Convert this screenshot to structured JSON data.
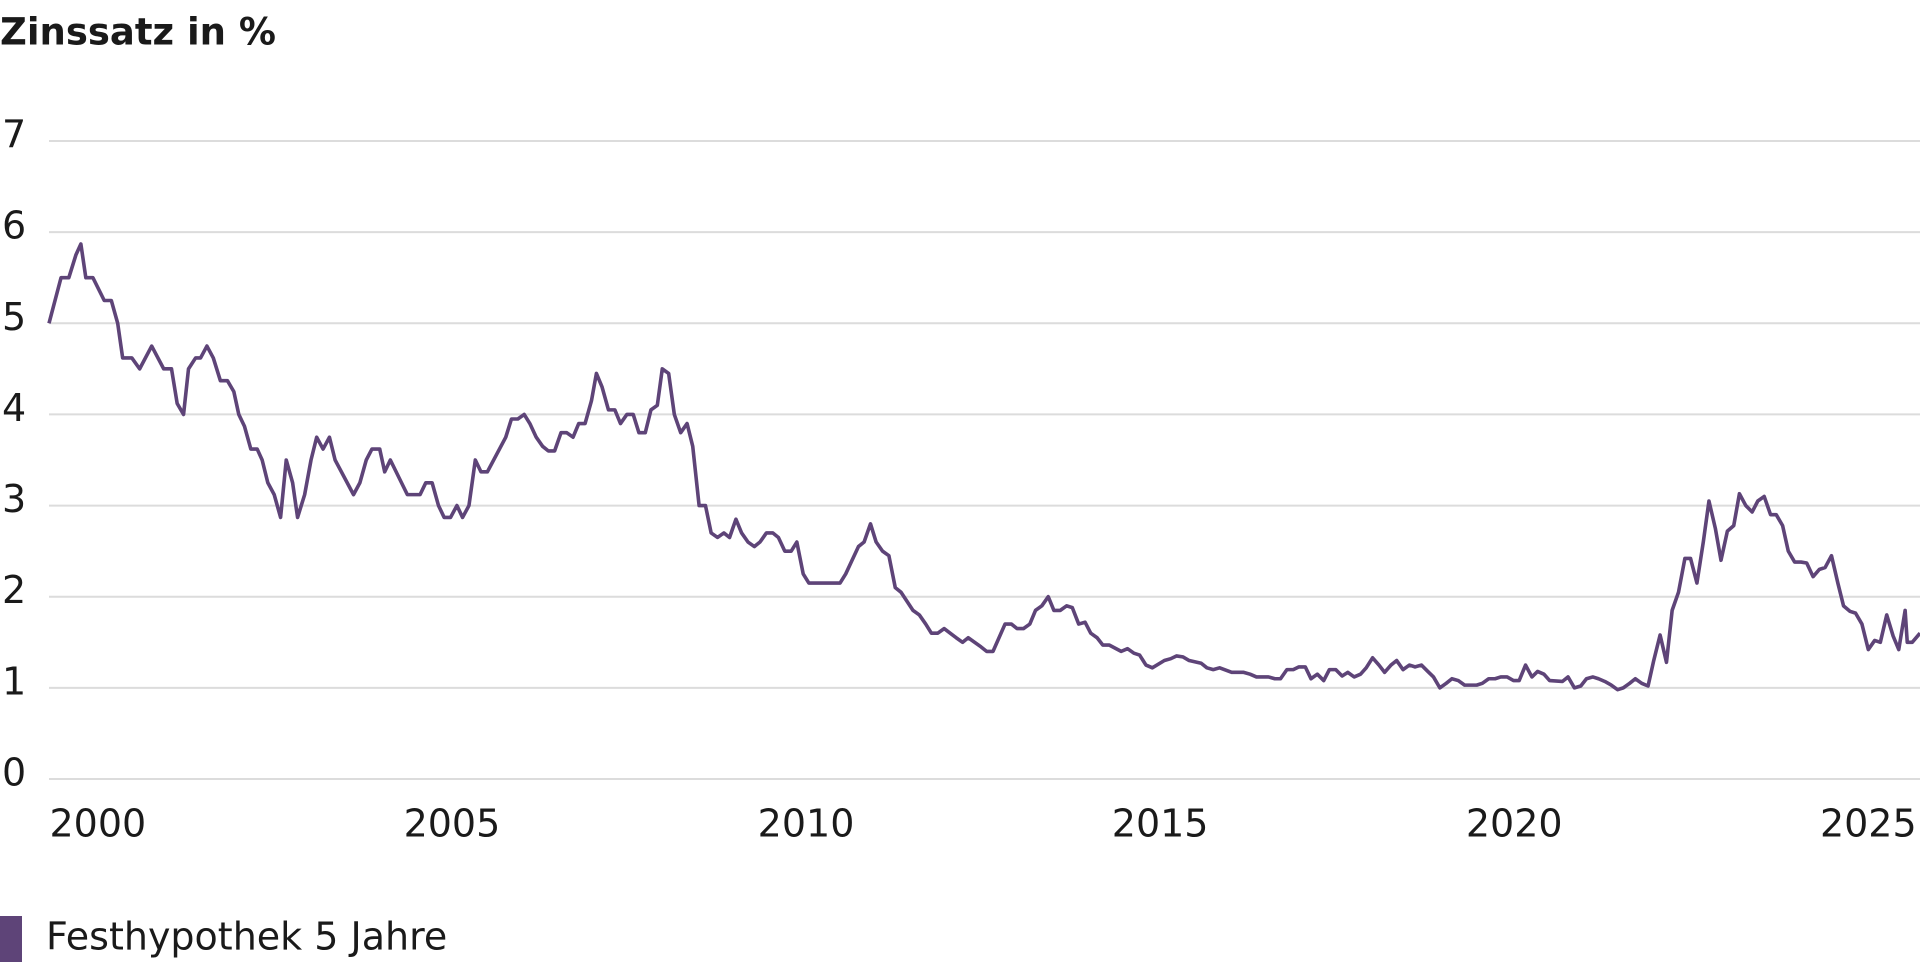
{
  "chart_data": {
    "type": "line",
    "title": "Zinssatz in %",
    "xlim": [
      1999.31,
      2025.73
    ],
    "xticks": [
      2000,
      2005,
      2010,
      2015,
      2020,
      2025
    ],
    "ylim": [
      0,
      7
    ],
    "yticks": [
      0,
      1,
      2,
      3,
      4,
      5,
      6,
      7
    ],
    "grid": true,
    "legend": "bottom-left",
    "series": [
      {
        "name": "Festhypothek 5 Jahre",
        "color": "#5e4478",
        "x": [
          1999.31,
          1999.48,
          1999.59,
          1999.69,
          1999.76,
          1999.83,
          1999.93,
          2000.09,
          2000.19,
          2000.28,
          2000.35,
          2000.48,
          2000.59,
          2000.76,
          2000.93,
          2001.04,
          2001.12,
          2001.21,
          2001.28,
          2001.38,
          2001.45,
          2001.54,
          2001.63,
          2001.73,
          2001.83,
          2001.92,
          2001.99,
          2002.07,
          2002.16,
          2002.25,
          2002.32,
          2002.4,
          2002.49,
          2002.58,
          2002.66,
          2002.75,
          2002.82,
          2002.92,
          2003.01,
          2003.09,
          2003.18,
          2003.27,
          2003.35,
          2003.61,
          2003.7,
          2003.79,
          2003.87,
          2003.98,
          2004.05,
          2004.13,
          2004.37,
          2004.55,
          2004.63,
          2004.72,
          2004.81,
          2004.89,
          2004.98,
          2005.07,
          2005.15,
          2005.24,
          2005.33,
          2005.41,
          2005.5,
          2005.76,
          2005.84,
          2005.93,
          2006.02,
          2006.1,
          2006.19,
          2006.28,
          2006.36,
          2006.45,
          2006.54,
          2006.62,
          2006.71,
          2006.79,
          2006.88,
          2006.97,
          2007.04,
          2007.12,
          2007.21,
          2007.3,
          2007.38,
          2007.47,
          2007.56,
          2007.64,
          2007.73,
          2007.81,
          2007.9,
          2007.97,
          2008.06,
          2008.14,
          2008.23,
          2008.32,
          2008.4,
          2008.49,
          2008.58,
          2008.66,
          2008.75,
          2008.84,
          2008.92,
          2009.01,
          2009.09,
          2009.18,
          2009.27,
          2009.35,
          2009.44,
          2009.53,
          2009.61,
          2009.7,
          2009.79,
          2009.87,
          2009.96,
          2010.04,
          2010.48,
          2010.56,
          2010.65,
          2010.74,
          2010.82,
          2010.91,
          2010.99,
          2011.08,
          2011.17,
          2011.26,
          2011.34,
          2011.51,
          2011.6,
          2011.69,
          2011.77,
          2011.86,
          2011.95,
          2012.12,
          2012.21,
          2012.29,
          2012.47,
          2012.55,
          2012.64,
          2012.81,
          2012.9,
          2012.98,
          2013.07,
          2013.16,
          2013.24,
          2013.33,
          2013.42,
          2013.5,
          2013.59,
          2013.68,
          2013.76,
          2013.85,
          2013.94,
          2014.02,
          2014.11,
          2014.19,
          2014.28,
          2014.45,
          2014.54,
          2014.63,
          2014.71,
          2014.8,
          2014.89,
          2015.06,
          2015.15,
          2015.23,
          2015.32,
          2015.41,
          2015.58,
          2015.66,
          2015.75,
          2015.84,
          2016.01,
          2016.18,
          2016.27,
          2016.36,
          2016.53,
          2016.62,
          2016.7,
          2016.79,
          2016.88,
          2016.96,
          2017.05,
          2017.13,
          2017.22,
          2017.31,
          2017.39,
          2017.48,
          2017.57,
          2017.65,
          2017.74,
          2017.83,
          2017.91,
          2018.0,
          2018.09,
          2018.17,
          2018.26,
          2018.34,
          2018.43,
          2018.52,
          2018.6,
          2018.69,
          2018.78,
          2018.86,
          2018.95,
          2019.04,
          2019.12,
          2019.21,
          2019.3,
          2019.47,
          2019.55,
          2019.64,
          2019.73,
          2019.81,
          2019.9,
          2019.99,
          2020.07,
          2020.16,
          2020.25,
          2020.33,
          2020.42,
          2020.5,
          2020.68,
          2020.76,
          2020.85,
          2020.94,
          2021.02,
          2021.11,
          2021.19,
          2021.28,
          2021.37,
          2021.46,
          2021.54,
          2021.63,
          2021.71,
          2021.8,
          2021.89,
          2021.97,
          2022.06,
          2022.15,
          2022.23,
          2022.32,
          2022.41,
          2022.49,
          2022.58,
          2022.67,
          2022.75,
          2022.84,
          2022.92,
          2023.01,
          2023.1,
          2023.18,
          2023.27,
          2023.36,
          2023.44,
          2023.53,
          2023.62,
          2023.7,
          2023.79,
          2023.87,
          2023.96,
          2024.05,
          2024.13,
          2024.22,
          2024.31,
          2024.39,
          2024.48,
          2024.57,
          2024.65,
          2024.74,
          2024.82,
          2024.91,
          2025.0,
          2025.09,
          2025.17,
          2025.26,
          2025.35,
          2025.43,
          2025.52,
          2025.55,
          2025.62,
          2025.73
        ],
        "values": [
          5.0,
          5.5,
          5.5,
          5.75,
          5.87,
          5.5,
          5.5,
          5.25,
          5.25,
          5.0,
          4.62,
          4.62,
          4.5,
          4.75,
          4.5,
          4.5,
          4.12,
          4.0,
          4.5,
          4.62,
          4.62,
          4.75,
          4.62,
          4.37,
          4.37,
          4.25,
          4.0,
          3.87,
          3.62,
          3.62,
          3.5,
          3.25,
          3.12,
          2.87,
          3.5,
          3.25,
          2.87,
          3.12,
          3.5,
          3.75,
          3.62,
          3.75,
          3.5,
          3.12,
          3.25,
          3.5,
          3.62,
          3.62,
          3.37,
          3.5,
          3.12,
          3.12,
          3.25,
          3.25,
          3.0,
          2.87,
          2.87,
          3.0,
          2.87,
          3.0,
          3.5,
          3.37,
          3.37,
          3.75,
          3.95,
          3.95,
          4.0,
          3.9,
          3.75,
          3.65,
          3.6,
          3.6,
          3.8,
          3.8,
          3.75,
          3.9,
          3.9,
          4.15,
          4.45,
          4.3,
          4.05,
          4.05,
          3.9,
          4.0,
          4.0,
          3.8,
          3.8,
          4.05,
          4.1,
          4.5,
          4.45,
          4.0,
          3.8,
          3.9,
          3.65,
          3.0,
          3.0,
          2.7,
          2.65,
          2.7,
          2.65,
          2.85,
          2.7,
          2.6,
          2.55,
          2.6,
          2.7,
          2.7,
          2.65,
          2.5,
          2.5,
          2.6,
          2.25,
          2.15,
          2.15,
          2.25,
          2.4,
          2.55,
          2.6,
          2.8,
          2.6,
          2.5,
          2.45,
          2.1,
          2.05,
          1.85,
          1.8,
          1.7,
          1.6,
          1.6,
          1.65,
          1.55,
          1.5,
          1.55,
          1.45,
          1.4,
          1.4,
          1.7,
          1.7,
          1.65,
          1.65,
          1.7,
          1.85,
          1.9,
          2.0,
          1.85,
          1.85,
          1.9,
          1.88,
          1.7,
          1.72,
          1.6,
          1.55,
          1.47,
          1.47,
          1.4,
          1.43,
          1.38,
          1.36,
          1.25,
          1.22,
          1.3,
          1.32,
          1.35,
          1.34,
          1.3,
          1.27,
          1.22,
          1.2,
          1.22,
          1.17,
          1.17,
          1.15,
          1.12,
          1.12,
          1.1,
          1.1,
          1.2,
          1.2,
          1.23,
          1.23,
          1.1,
          1.15,
          1.08,
          1.2,
          1.2,
          1.13,
          1.17,
          1.12,
          1.15,
          1.22,
          1.33,
          1.25,
          1.17,
          1.25,
          1.3,
          1.2,
          1.25,
          1.23,
          1.25,
          1.18,
          1.12,
          1.0,
          1.05,
          1.1,
          1.08,
          1.03,
          1.03,
          1.05,
          1.1,
          1.1,
          1.12,
          1.12,
          1.08,
          1.08,
          1.25,
          1.12,
          1.18,
          1.15,
          1.08,
          1.07,
          1.12,
          1.0,
          1.02,
          1.1,
          1.12,
          1.1,
          1.07,
          1.03,
          0.98,
          1.0,
          1.05,
          1.1,
          1.05,
          1.02,
          1.3,
          1.58,
          1.28,
          1.85,
          2.05,
          2.42,
          2.42,
          2.15,
          2.6,
          3.05,
          2.75,
          2.4,
          2.72,
          2.78,
          3.13,
          3.0,
          2.93,
          3.05,
          3.1,
          2.9,
          2.9,
          2.78,
          2.5,
          2.38,
          2.38,
          2.37,
          2.22,
          2.3,
          2.32,
          2.45,
          2.15,
          1.9,
          1.84,
          1.82,
          1.7,
          1.42,
          1.52,
          1.5,
          1.8,
          1.57,
          1.42,
          1.85,
          1.5,
          1.5,
          1.6
        ]
      }
    ]
  }
}
